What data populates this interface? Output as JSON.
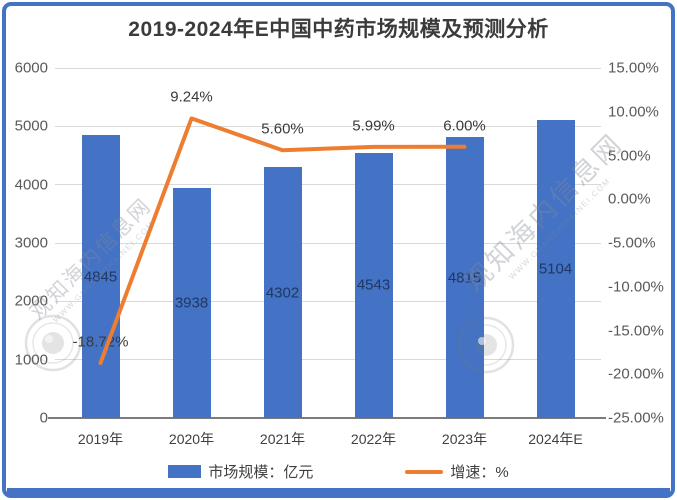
{
  "title": "2019-2024年E中国中药市场规模及预测分析",
  "chart_data": {
    "type": "bar",
    "subtype": "bar+line combo",
    "categories": [
      "2019年",
      "2020年",
      "2021年",
      "2022年",
      "2023年",
      "2024年E"
    ],
    "series": [
      {
        "name": "市场规模：亿元",
        "type": "bar",
        "axis": "left",
        "color": "#4472C4",
        "values": [
          4845,
          3938,
          4302,
          4543,
          4815,
          5104
        ],
        "value_labels": [
          "4845",
          "3938",
          "4302",
          "4543",
          "4815",
          "5104"
        ]
      },
      {
        "name": "增速：%",
        "type": "line",
        "axis": "right",
        "color": "#ED7D31",
        "values": [
          -18.72,
          9.24,
          5.6,
          5.99,
          6.0,
          null
        ],
        "value_labels": [
          "-18.72%",
          "9.24%",
          "5.60%",
          "5.99%",
          "6.00%",
          ""
        ]
      }
    ],
    "left_axis": {
      "min": 0,
      "max": 6000,
      "step": 1000,
      "ticks": [
        "0",
        "1000",
        "2000",
        "3000",
        "4000",
        "5000",
        "6000"
      ]
    },
    "right_axis": {
      "min": -25,
      "max": 15,
      "step": 5,
      "ticks": [
        "15.00%",
        "10.00%",
        "5.00%",
        "0.00%",
        "-5.00%",
        "-10.00%",
        "-15.00%",
        "-20.00%",
        "-25.00%"
      ]
    },
    "grid": true,
    "legend_position": "bottom"
  },
  "legend": {
    "bar_label": "市场规模：亿元",
    "line_label": "增速：%"
  },
  "watermark": {
    "site_text": "观知海内信息网",
    "url_text": "WWW.GUANZHIHAINEI.COM"
  },
  "colors": {
    "bar": "#4472C4",
    "line": "#ED7D31",
    "border": "#4472C4",
    "bar_value_label": "#1F3864",
    "title_text": "#3b3b3b"
  }
}
